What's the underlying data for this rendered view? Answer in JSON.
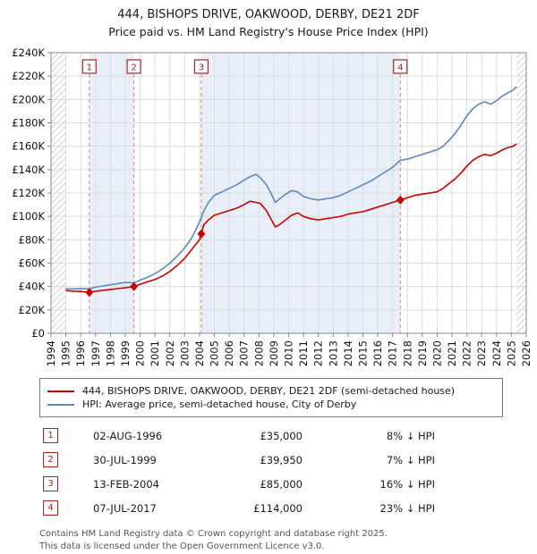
{
  "footer": {
    "line1": "Contains HM Land Registry data © Crown copyright and database right 2025.",
    "line2": "This data is licensed under the Open Government Licence v3.0."
  },
  "chart_data": {
    "type": "line",
    "title": "444, BISHOPS DRIVE, OAKWOOD, DERBY, DE21 2DF",
    "subtitle": "Price paid vs. HM Land Registry's House Price Index (HPI)",
    "xlim": [
      1994,
      2026
    ],
    "ylim": [
      0,
      240000
    ],
    "grid": true,
    "legend_position": "below",
    "data_start": 1995.0,
    "data_end": 2025.35,
    "shaded_bands": [
      [
        1996.58,
        1999.58
      ],
      [
        2004.12,
        2017.52
      ]
    ],
    "colors": {
      "grid": "#dcdcdc",
      "axis": "#888888",
      "band": "#e9eff9",
      "hatch": "#c8c8c8",
      "sale_line": "#e08080",
      "sale_box": "#aa2222",
      "marker": "#cc0000"
    },
    "x_ticks": [
      1994,
      1995,
      1996,
      1997,
      1998,
      1999,
      2000,
      2001,
      2002,
      2003,
      2004,
      2005,
      2006,
      2007,
      2008,
      2009,
      2010,
      2011,
      2012,
      2013,
      2014,
      2015,
      2016,
      2017,
      2018,
      2019,
      2020,
      2021,
      2022,
      2023,
      2024,
      2025,
      2026
    ],
    "y_ticks": [
      {
        "value": 0,
        "label": "£0"
      },
      {
        "value": 20000,
        "label": "£20K"
      },
      {
        "value": 40000,
        "label": "£40K"
      },
      {
        "value": 60000,
        "label": "£60K"
      },
      {
        "value": 80000,
        "label": "£80K"
      },
      {
        "value": 100000,
        "label": "£100K"
      },
      {
        "value": 120000,
        "label": "£120K"
      },
      {
        "value": 140000,
        "label": "£140K"
      },
      {
        "value": 160000,
        "label": "£160K"
      },
      {
        "value": 180000,
        "label": "£180K"
      },
      {
        "value": 200000,
        "label": "£200K"
      },
      {
        "value": 220000,
        "label": "£220K"
      },
      {
        "value": 240000,
        "label": "£240K"
      }
    ],
    "series": [
      {
        "name": "444, BISHOPS DRIVE, OAKWOOD, DERBY, DE21 2DF (semi-detached house)",
        "color": "#cc0000",
        "points": [
          [
            1995.0,
            36500
          ],
          [
            1995.5,
            36000
          ],
          [
            1996.0,
            35800
          ],
          [
            1996.58,
            35000
          ],
          [
            1997.0,
            36000
          ],
          [
            1997.5,
            36800
          ],
          [
            1998.0,
            37500
          ],
          [
            1998.5,
            38200
          ],
          [
            1999.0,
            39000
          ],
          [
            1999.58,
            39950
          ],
          [
            2000.0,
            42000
          ],
          [
            2000.5,
            44000
          ],
          [
            2001.0,
            46000
          ],
          [
            2001.5,
            49000
          ],
          [
            2002.0,
            53000
          ],
          [
            2002.5,
            58000
          ],
          [
            2003.0,
            64000
          ],
          [
            2003.5,
            72000
          ],
          [
            2004.0,
            80000
          ],
          [
            2004.12,
            85000
          ],
          [
            2004.3,
            93000
          ],
          [
            2004.6,
            97000
          ],
          [
            2005.0,
            101000
          ],
          [
            2005.5,
            103000
          ],
          [
            2006.0,
            105000
          ],
          [
            2006.5,
            107000
          ],
          [
            2007.0,
            110000
          ],
          [
            2007.4,
            113000
          ],
          [
            2007.8,
            112000
          ],
          [
            2008.1,
            111000
          ],
          [
            2008.5,
            105000
          ],
          [
            2008.8,
            98000
          ],
          [
            2009.1,
            91000
          ],
          [
            2009.4,
            93000
          ],
          [
            2009.8,
            97000
          ],
          [
            2010.2,
            101000
          ],
          [
            2010.6,
            103000
          ],
          [
            2011.0,
            100000
          ],
          [
            2011.5,
            98000
          ],
          [
            2012.0,
            97000
          ],
          [
            2012.5,
            98000
          ],
          [
            2013.0,
            99000
          ],
          [
            2013.5,
            100000
          ],
          [
            2014.0,
            102000
          ],
          [
            2014.5,
            103000
          ],
          [
            2015.0,
            104000
          ],
          [
            2015.5,
            106000
          ],
          [
            2016.0,
            108000
          ],
          [
            2016.5,
            110000
          ],
          [
            2017.0,
            112000
          ],
          [
            2017.52,
            114000
          ],
          [
            2018.0,
            116000
          ],
          [
            2018.5,
            118000
          ],
          [
            2019.0,
            119000
          ],
          [
            2019.5,
            120000
          ],
          [
            2020.0,
            121000
          ],
          [
            2020.4,
            124000
          ],
          [
            2020.8,
            128000
          ],
          [
            2021.2,
            132000
          ],
          [
            2021.6,
            137000
          ],
          [
            2022.0,
            143000
          ],
          [
            2022.4,
            148000
          ],
          [
            2022.8,
            151000
          ],
          [
            2023.2,
            153000
          ],
          [
            2023.6,
            152000
          ],
          [
            2024.0,
            154000
          ],
          [
            2024.4,
            157000
          ],
          [
            2024.8,
            159000
          ],
          [
            2025.1,
            160000
          ],
          [
            2025.35,
            162000
          ]
        ]
      },
      {
        "name": "HPI: Average price, semi-detached house, City of Derby",
        "color": "#5b8ac2",
        "points": [
          [
            1995.0,
            38000
          ],
          [
            1995.5,
            38000
          ],
          [
            1996.0,
            38300
          ],
          [
            1996.58,
            38000
          ],
          [
            1997.0,
            39500
          ],
          [
            1997.5,
            40500
          ],
          [
            1998.0,
            41500
          ],
          [
            1998.5,
            42500
          ],
          [
            1999.0,
            43500
          ],
          [
            1999.58,
            43000
          ],
          [
            2000.0,
            45500
          ],
          [
            2000.5,
            48000
          ],
          [
            2001.0,
            51000
          ],
          [
            2001.5,
            55000
          ],
          [
            2002.0,
            60000
          ],
          [
            2002.5,
            66000
          ],
          [
            2003.0,
            73000
          ],
          [
            2003.5,
            82000
          ],
          [
            2004.0,
            95000
          ],
          [
            2004.3,
            105000
          ],
          [
            2004.6,
            112000
          ],
          [
            2005.0,
            118000
          ],
          [
            2005.5,
            121000
          ],
          [
            2006.0,
            124000
          ],
          [
            2006.5,
            127000
          ],
          [
            2007.0,
            131000
          ],
          [
            2007.4,
            134000
          ],
          [
            2007.8,
            136000
          ],
          [
            2008.1,
            133000
          ],
          [
            2008.5,
            127000
          ],
          [
            2008.8,
            120000
          ],
          [
            2009.1,
            112000
          ],
          [
            2009.4,
            115000
          ],
          [
            2009.8,
            119000
          ],
          [
            2010.2,
            122000
          ],
          [
            2010.6,
            121000
          ],
          [
            2011.0,
            117000
          ],
          [
            2011.5,
            115000
          ],
          [
            2012.0,
            114000
          ],
          [
            2012.5,
            115000
          ],
          [
            2013.0,
            116000
          ],
          [
            2013.5,
            118000
          ],
          [
            2014.0,
            121000
          ],
          [
            2014.5,
            124000
          ],
          [
            2015.0,
            127000
          ],
          [
            2015.5,
            130000
          ],
          [
            2016.0,
            134000
          ],
          [
            2016.5,
            138000
          ],
          [
            2017.0,
            142000
          ],
          [
            2017.52,
            148000
          ],
          [
            2018.0,
            149000
          ],
          [
            2018.5,
            151000
          ],
          [
            2019.0,
            153000
          ],
          [
            2019.5,
            155000
          ],
          [
            2020.0,
            157000
          ],
          [
            2020.4,
            160000
          ],
          [
            2020.8,
            165000
          ],
          [
            2021.2,
            171000
          ],
          [
            2021.6,
            178000
          ],
          [
            2022.0,
            186000
          ],
          [
            2022.4,
            192000
          ],
          [
            2022.8,
            196000
          ],
          [
            2023.2,
            198000
          ],
          [
            2023.6,
            196000
          ],
          [
            2024.0,
            199000
          ],
          [
            2024.4,
            203000
          ],
          [
            2024.8,
            206000
          ],
          [
            2025.1,
            208000
          ],
          [
            2025.35,
            211000
          ]
        ]
      }
    ],
    "sales": [
      {
        "n": 1,
        "x": 1996.58,
        "value": 35000,
        "date": "02-AUG-1996",
        "price": "£35,000",
        "hpi": "8% ↓ HPI"
      },
      {
        "n": 2,
        "x": 1999.58,
        "value": 39950,
        "date": "30-JUL-1999",
        "price": "£39,950",
        "hpi": "7% ↓ HPI"
      },
      {
        "n": 3,
        "x": 2004.12,
        "value": 85000,
        "date": "13-FEB-2004",
        "price": "£85,000",
        "hpi": "16% ↓ HPI"
      },
      {
        "n": 4,
        "x": 2017.52,
        "value": 114000,
        "date": "07-JUL-2017",
        "price": "£114,000",
        "hpi": "23% ↓ HPI"
      }
    ]
  }
}
